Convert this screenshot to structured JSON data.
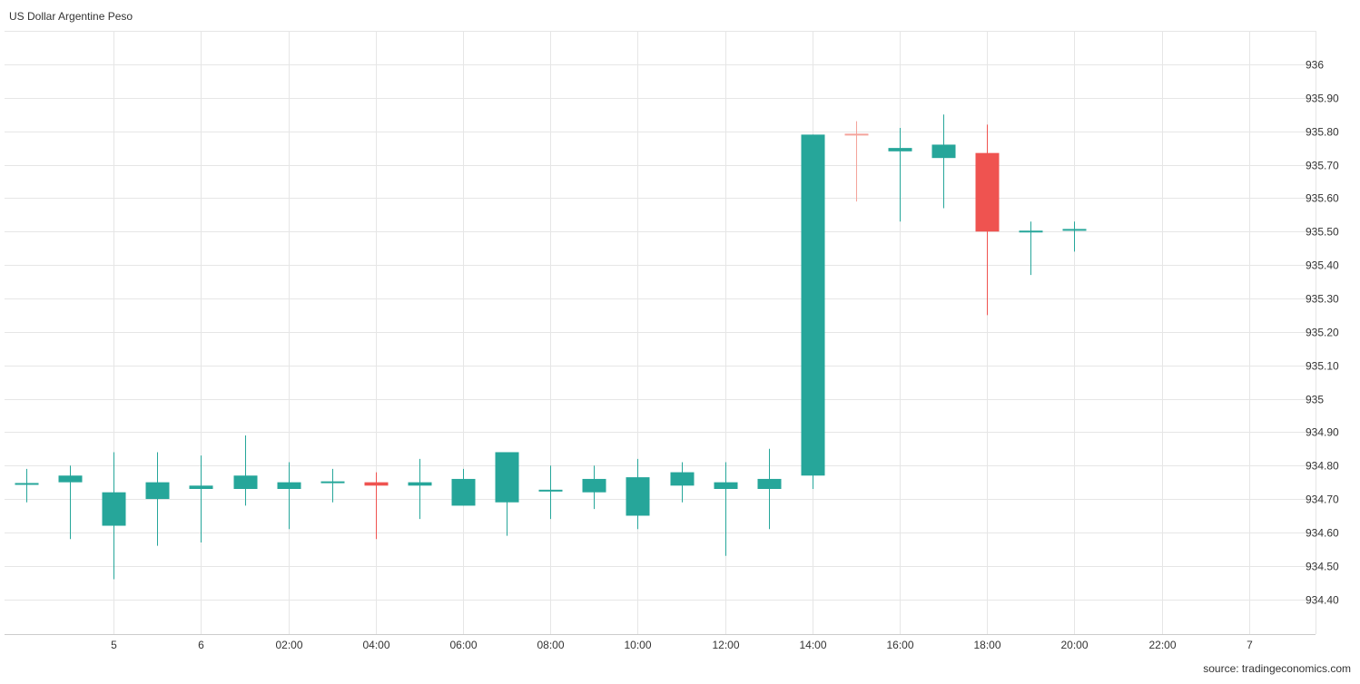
{
  "chart_data": {
    "type": "candlestick",
    "title": "US Dollar Argentine Peso",
    "source": "source: tradingeconomics.com",
    "colors": {
      "up": "#26a69a",
      "down": "#ef5350",
      "down_doji": "#f4a39b",
      "grid": "#e6e6e6"
    },
    "ylim": [
      934.3,
      936.1
    ],
    "y_ticks": [
      934.4,
      934.5,
      934.6,
      934.7,
      934.8,
      934.9,
      935,
      935.1,
      935.2,
      935.3,
      935.4,
      935.5,
      935.6,
      935.7,
      935.8,
      935.9,
      936
    ],
    "y_tick_labels": [
      "934.40",
      "934.50",
      "934.60",
      "934.70",
      "934.80",
      "934.90",
      "935",
      "935.10",
      "935.20",
      "935.30",
      "935.40",
      "935.50",
      "935.60",
      "935.70",
      "935.80",
      "935.90",
      "936"
    ],
    "x_tick_labels": [
      "5",
      "6",
      "02:00",
      "04:00",
      "06:00",
      "08:00",
      "10:00",
      "12:00",
      "14:00",
      "16:00",
      "18:00",
      "20:00",
      "22:00",
      "7"
    ],
    "x_tick_slots": [
      2.5,
      4.5,
      6.5,
      8.5,
      10.5,
      12.5,
      14.5,
      16.5,
      18.5,
      20.5,
      22.5,
      24.5,
      26.5,
      28.5
    ],
    "candles": [
      {
        "open": 934.74,
        "high": 934.79,
        "low": 934.69,
        "close": 934.745
      },
      {
        "open": 934.75,
        "high": 934.8,
        "low": 934.58,
        "close": 934.77
      },
      {
        "open": 934.62,
        "high": 934.84,
        "low": 934.46,
        "close": 934.72
      },
      {
        "open": 934.7,
        "high": 934.84,
        "low": 934.56,
        "close": 934.75
      },
      {
        "open": 934.73,
        "high": 934.83,
        "low": 934.57,
        "close": 934.74
      },
      {
        "open": 934.73,
        "high": 934.89,
        "low": 934.68,
        "close": 934.77
      },
      {
        "open": 934.73,
        "high": 934.81,
        "low": 934.61,
        "close": 934.75
      },
      {
        "open": 934.745,
        "high": 934.79,
        "low": 934.69,
        "close": 934.75
      },
      {
        "open": 934.75,
        "high": 934.78,
        "low": 934.58,
        "close": 934.74
      },
      {
        "open": 934.74,
        "high": 934.82,
        "low": 934.64,
        "close": 934.75
      },
      {
        "open": 934.68,
        "high": 934.79,
        "low": 934.68,
        "close": 934.76
      },
      {
        "open": 934.69,
        "high": 934.84,
        "low": 934.59,
        "close": 934.84
      },
      {
        "open": 934.725,
        "high": 934.8,
        "low": 934.64,
        "close": 934.725
      },
      {
        "open": 934.72,
        "high": 934.8,
        "low": 934.67,
        "close": 934.76
      },
      {
        "open": 934.65,
        "high": 934.82,
        "low": 934.61,
        "close": 934.765
      },
      {
        "open": 934.74,
        "high": 934.81,
        "low": 934.69,
        "close": 934.78
      },
      {
        "open": 934.73,
        "high": 934.81,
        "low": 934.53,
        "close": 934.75
      },
      {
        "open": 934.73,
        "high": 934.85,
        "low": 934.61,
        "close": 934.76
      },
      {
        "open": 934.77,
        "high": 935.79,
        "low": 934.73,
        "close": 935.79
      },
      {
        "open": 935.79,
        "high": 935.83,
        "low": 935.59,
        "close": 935.785
      },
      {
        "open": 935.74,
        "high": 935.81,
        "low": 935.53,
        "close": 935.75
      },
      {
        "open": 935.72,
        "high": 935.85,
        "low": 935.57,
        "close": 935.76
      },
      {
        "open": 935.735,
        "high": 935.82,
        "low": 935.25,
        "close": 935.5
      },
      {
        "open": 935.495,
        "high": 935.53,
        "low": 935.37,
        "close": 935.5
      },
      {
        "open": 935.5,
        "high": 935.53,
        "low": 935.44,
        "close": 935.505
      }
    ]
  }
}
